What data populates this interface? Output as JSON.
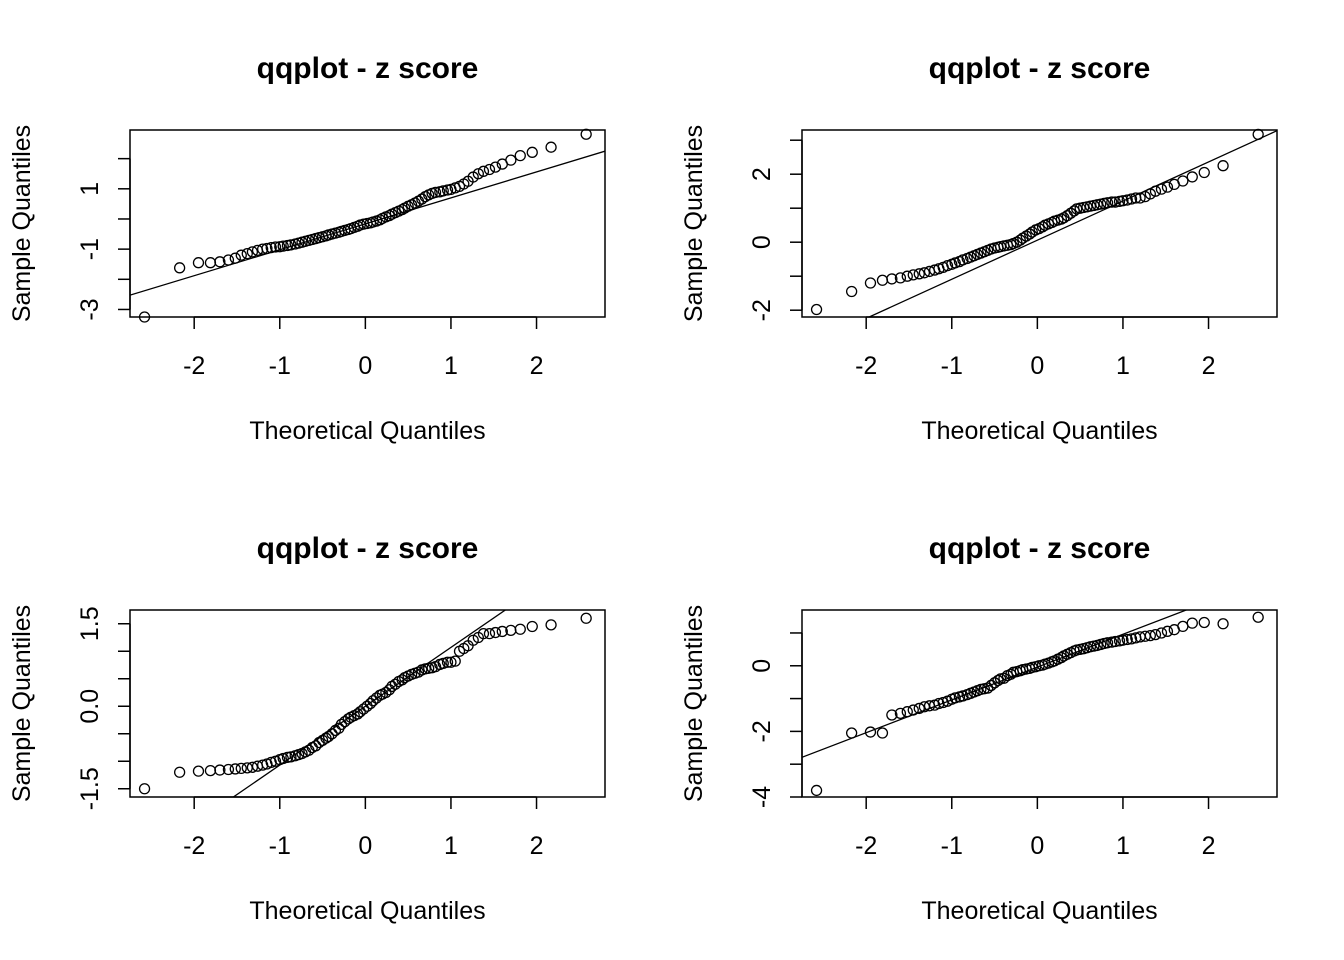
{
  "chart_data": [
    {
      "type": "scatter",
      "title": "qqplot - z score",
      "xlabel": "Theoretical Quantiles",
      "ylabel": "Sample Quantiles",
      "xlim": [
        -2.75,
        2.8
      ],
      "ylim": [
        -3.25,
        2.95
      ],
      "xticks": [
        -2,
        -1,
        0,
        1,
        2
      ],
      "xtick_labels": [
        "-2",
        "-1",
        "0",
        "1",
        "2"
      ],
      "yticks": [
        -3,
        -2,
        -1,
        0,
        1,
        2
      ],
      "ytick_labels": [
        "-3",
        "",
        "-1",
        "",
        "1",
        ""
      ],
      "reference_line": {
        "intercept": -0.16,
        "slope": 0.86
      },
      "series": [
        {
          "x": [
            -2.58,
            -2.17,
            -1.95,
            -1.81,
            -1.7,
            -1.6,
            -1.52,
            -1.45,
            -1.38,
            -1.32,
            -1.26,
            -1.2,
            -1.15,
            -1.1,
            -1.05,
            -1.0,
            -0.96,
            -0.91,
            -0.87,
            -0.82,
            -0.78,
            -0.74,
            -0.7,
            -0.66,
            -0.62,
            -0.58,
            -0.54,
            -0.5,
            -0.46,
            -0.43,
            -0.39,
            -0.35,
            -0.31,
            -0.28,
            -0.24,
            -0.2,
            -0.17,
            -0.13,
            -0.09,
            -0.06,
            -0.02,
            0.02,
            0.06,
            0.09,
            0.13,
            0.17,
            0.2,
            0.24,
            0.28,
            0.31,
            0.35,
            0.39,
            0.43,
            0.46,
            0.5,
            0.54,
            0.58,
            0.62,
            0.66,
            0.7,
            0.74,
            0.78,
            0.82,
            0.87,
            0.91,
            0.96,
            1.0,
            1.05,
            1.1,
            1.15,
            1.2,
            1.26,
            1.32,
            1.38,
            1.45,
            1.52,
            1.6,
            1.7,
            1.81,
            1.95,
            2.17,
            2.58
          ],
          "y": [
            -3.25,
            -1.62,
            -1.45,
            -1.45,
            -1.42,
            -1.36,
            -1.3,
            -1.2,
            -1.15,
            -1.09,
            -1.04,
            -1.0,
            -0.98,
            -0.95,
            -0.93,
            -0.92,
            -0.9,
            -0.88,
            -0.86,
            -0.83,
            -0.8,
            -0.77,
            -0.74,
            -0.71,
            -0.68,
            -0.65,
            -0.62,
            -0.59,
            -0.56,
            -0.53,
            -0.5,
            -0.47,
            -0.44,
            -0.41,
            -0.38,
            -0.35,
            -0.32,
            -0.28,
            -0.24,
            -0.2,
            -0.17,
            -0.15,
            -0.13,
            -0.1,
            -0.07,
            -0.03,
            0.02,
            0.07,
            0.11,
            0.16,
            0.21,
            0.26,
            0.31,
            0.36,
            0.42,
            0.47,
            0.53,
            0.59,
            0.66,
            0.74,
            0.8,
            0.85,
            0.88,
            0.9,
            0.93,
            0.96,
            0.98,
            1.03,
            1.08,
            1.16,
            1.25,
            1.39,
            1.5,
            1.58,
            1.64,
            1.72,
            1.82,
            1.95,
            2.1,
            2.21,
            2.38,
            2.81
          ]
        }
      ]
    },
    {
      "type": "scatter",
      "title": "qqplot - z score",
      "xlabel": "Theoretical Quantiles",
      "ylabel": "Sample Quantiles",
      "xlim": [
        -2.75,
        2.8
      ],
      "ylim": [
        -2.2,
        3.3
      ],
      "xticks": [
        -2,
        -1,
        0,
        1,
        2
      ],
      "xtick_labels": [
        "-2",
        "-1",
        "0",
        "1",
        "2"
      ],
      "yticks": [
        -2,
        -1,
        0,
        1,
        2,
        3
      ],
      "ytick_labels": [
        "-2",
        "",
        "0",
        "",
        "2",
        ""
      ],
      "reference_line": {
        "intercept": 0.06,
        "slope": 1.15
      },
      "series": [
        {
          "x": [
            -2.58,
            -2.17,
            -1.95,
            -1.81,
            -1.7,
            -1.6,
            -1.52,
            -1.45,
            -1.38,
            -1.32,
            -1.26,
            -1.2,
            -1.15,
            -1.1,
            -1.05,
            -1.0,
            -0.96,
            -0.91,
            -0.87,
            -0.82,
            -0.78,
            -0.74,
            -0.7,
            -0.66,
            -0.62,
            -0.58,
            -0.54,
            -0.5,
            -0.46,
            -0.43,
            -0.39,
            -0.35,
            -0.31,
            -0.28,
            -0.24,
            -0.2,
            -0.17,
            -0.13,
            -0.09,
            -0.06,
            -0.02,
            0.02,
            0.06,
            0.09,
            0.13,
            0.17,
            0.2,
            0.24,
            0.28,
            0.31,
            0.35,
            0.39,
            0.43,
            0.46,
            0.5,
            0.54,
            0.58,
            0.62,
            0.66,
            0.7,
            0.74,
            0.78,
            0.82,
            0.87,
            0.91,
            0.96,
            1.0,
            1.05,
            1.1,
            1.15,
            1.2,
            1.26,
            1.32,
            1.38,
            1.45,
            1.52,
            1.6,
            1.7,
            1.81,
            1.95,
            2.17,
            2.58
          ],
          "y": [
            -1.98,
            -1.45,
            -1.2,
            -1.12,
            -1.08,
            -1.05,
            -1.0,
            -0.96,
            -0.93,
            -0.9,
            -0.86,
            -0.82,
            -0.78,
            -0.74,
            -0.69,
            -0.65,
            -0.61,
            -0.57,
            -0.52,
            -0.48,
            -0.44,
            -0.4,
            -0.36,
            -0.32,
            -0.28,
            -0.24,
            -0.2,
            -0.17,
            -0.15,
            -0.13,
            -0.11,
            -0.09,
            -0.07,
            -0.04,
            0.0,
            0.06,
            0.12,
            0.18,
            0.24,
            0.3,
            0.36,
            0.4,
            0.45,
            0.5,
            0.54,
            0.58,
            0.62,
            0.65,
            0.68,
            0.72,
            0.78,
            0.85,
            0.92,
            0.98,
            1.0,
            1.02,
            1.04,
            1.06,
            1.08,
            1.1,
            1.12,
            1.14,
            1.16,
            1.18,
            1.18,
            1.2,
            1.22,
            1.24,
            1.27,
            1.3,
            1.3,
            1.34,
            1.42,
            1.5,
            1.56,
            1.62,
            1.7,
            1.8,
            1.92,
            2.05,
            2.25,
            3.17
          ]
        }
      ]
    },
    {
      "type": "scatter",
      "title": "qqplot - z score",
      "xlabel": "Theoretical Quantiles",
      "ylabel": "Sample Quantiles",
      "xlim": [
        -2.75,
        2.8
      ],
      "ylim": [
        -1.65,
        1.75
      ],
      "xticks": [
        -2,
        -1,
        0,
        1,
        2
      ],
      "xtick_labels": [
        "-2",
        "-1",
        "0",
        "1",
        "2"
      ],
      "yticks": [
        -1.5,
        -1.0,
        -0.5,
        0.0,
        0.5,
        1.0,
        1.5
      ],
      "ytick_labels": [
        "-1.5",
        "",
        "",
        "0.0",
        "",
        "",
        "1.5"
      ],
      "reference_line": {
        "intercept": 0.0,
        "slope": 1.07
      },
      "series": [
        {
          "x": [
            -2.58,
            -2.17,
            -1.95,
            -1.81,
            -1.7,
            -1.6,
            -1.52,
            -1.45,
            -1.38,
            -1.32,
            -1.26,
            -1.2,
            -1.15,
            -1.1,
            -1.05,
            -1.0,
            -0.96,
            -0.91,
            -0.87,
            -0.82,
            -0.78,
            -0.74,
            -0.7,
            -0.66,
            -0.62,
            -0.58,
            -0.54,
            -0.5,
            -0.46,
            -0.43,
            -0.39,
            -0.35,
            -0.31,
            -0.28,
            -0.24,
            -0.2,
            -0.17,
            -0.13,
            -0.09,
            -0.06,
            -0.02,
            0.02,
            0.06,
            0.09,
            0.13,
            0.17,
            0.2,
            0.24,
            0.28,
            0.31,
            0.35,
            0.39,
            0.43,
            0.46,
            0.5,
            0.54,
            0.58,
            0.62,
            0.66,
            0.7,
            0.74,
            0.78,
            0.82,
            0.87,
            0.91,
            0.96,
            1.0,
            1.05,
            1.1,
            1.15,
            1.2,
            1.26,
            1.32,
            1.38,
            1.45,
            1.52,
            1.6,
            1.7,
            1.81,
            1.95,
            2.17,
            2.58
          ],
          "y": [
            -1.5,
            -1.2,
            -1.18,
            -1.17,
            -1.16,
            -1.15,
            -1.14,
            -1.13,
            -1.12,
            -1.11,
            -1.09,
            -1.07,
            -1.05,
            -1.02,
            -1.0,
            -0.97,
            -0.95,
            -0.93,
            -0.92,
            -0.9,
            -0.88,
            -0.86,
            -0.83,
            -0.8,
            -0.75,
            -0.72,
            -0.66,
            -0.62,
            -0.58,
            -0.55,
            -0.5,
            -0.44,
            -0.4,
            -0.33,
            -0.28,
            -0.23,
            -0.2,
            -0.17,
            -0.14,
            -0.1,
            -0.05,
            0.0,
            0.05,
            0.1,
            0.15,
            0.2,
            0.22,
            0.25,
            0.3,
            0.36,
            0.4,
            0.45,
            0.48,
            0.52,
            0.55,
            0.58,
            0.6,
            0.62,
            0.66,
            0.68,
            0.69,
            0.7,
            0.72,
            0.76,
            0.78,
            0.8,
            0.8,
            0.82,
            1.0,
            1.05,
            1.1,
            1.2,
            1.25,
            1.32,
            1.32,
            1.34,
            1.36,
            1.38,
            1.4,
            1.45,
            1.48,
            1.6
          ]
        }
      ]
    },
    {
      "type": "scatter",
      "title": "qqplot - z score",
      "xlabel": "Theoretical Quantiles",
      "ylabel": "Sample Quantiles",
      "xlim": [
        -2.75,
        2.8
      ],
      "ylim": [
        -4.0,
        1.7
      ],
      "xticks": [
        -2,
        -1,
        0,
        1,
        2
      ],
      "xtick_labels": [
        "-2",
        "-1",
        "0",
        "1",
        "2"
      ],
      "yticks": [
        -4,
        -3,
        -2,
        -1,
        0,
        1
      ],
      "ytick_labels": [
        "-4",
        "",
        "-2",
        "",
        "0",
        ""
      ],
      "reference_line": {
        "intercept": -0.04,
        "slope": 1.0
      },
      "series": [
        {
          "x": [
            -2.58,
            -2.17,
            -1.95,
            -1.81,
            -1.7,
            -1.6,
            -1.52,
            -1.45,
            -1.38,
            -1.32,
            -1.26,
            -1.2,
            -1.15,
            -1.1,
            -1.05,
            -1.0,
            -0.96,
            -0.91,
            -0.87,
            -0.82,
            -0.78,
            -0.74,
            -0.7,
            -0.66,
            -0.62,
            -0.58,
            -0.54,
            -0.5,
            -0.46,
            -0.43,
            -0.39,
            -0.35,
            -0.31,
            -0.28,
            -0.24,
            -0.2,
            -0.17,
            -0.13,
            -0.09,
            -0.06,
            -0.02,
            0.02,
            0.06,
            0.09,
            0.13,
            0.17,
            0.2,
            0.24,
            0.28,
            0.31,
            0.35,
            0.39,
            0.43,
            0.46,
            0.5,
            0.54,
            0.58,
            0.62,
            0.66,
            0.7,
            0.74,
            0.78,
            0.82,
            0.87,
            0.91,
            0.96,
            1.0,
            1.05,
            1.1,
            1.15,
            1.2,
            1.26,
            1.32,
            1.38,
            1.45,
            1.52,
            1.6,
            1.7,
            1.81,
            1.95,
            2.17,
            2.58
          ],
          "y": [
            -3.8,
            -2.05,
            -2.02,
            -2.05,
            -1.5,
            -1.45,
            -1.4,
            -1.35,
            -1.3,
            -1.25,
            -1.22,
            -1.2,
            -1.15,
            -1.12,
            -1.08,
            -1.02,
            -0.98,
            -0.95,
            -0.92,
            -0.88,
            -0.84,
            -0.8,
            -0.76,
            -0.72,
            -0.7,
            -0.68,
            -0.6,
            -0.52,
            -0.45,
            -0.4,
            -0.38,
            -0.3,
            -0.26,
            -0.2,
            -0.18,
            -0.15,
            -0.12,
            -0.1,
            -0.08,
            -0.05,
            -0.03,
            0.0,
            0.02,
            0.05,
            0.08,
            0.12,
            0.15,
            0.2,
            0.25,
            0.3,
            0.35,
            0.4,
            0.45,
            0.48,
            0.5,
            0.52,
            0.55,
            0.58,
            0.6,
            0.62,
            0.65,
            0.68,
            0.7,
            0.72,
            0.74,
            0.76,
            0.78,
            0.8,
            0.82,
            0.85,
            0.88,
            0.9,
            0.92,
            0.95,
            1.0,
            1.05,
            1.1,
            1.2,
            1.3,
            1.32,
            1.28,
            1.48
          ]
        }
      ]
    }
  ]
}
